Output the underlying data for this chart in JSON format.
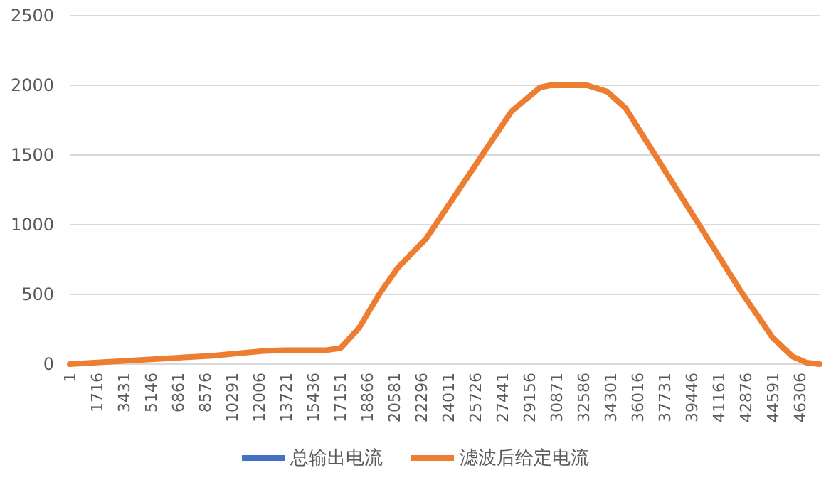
{
  "chart_data": {
    "type": "line",
    "x": [
      1,
      4524,
      9046,
      12393,
      13569,
      16282,
      17187,
      18363,
      19629,
      20805,
      22614,
      28041,
      29850,
      30483,
      32835,
      34101,
      35277,
      38895,
      42513,
      44594,
      45860,
      46765,
      47579
    ],
    "series": [
      {
        "name": "总输出电流",
        "color": "#4472c4",
        "values": [
          null,
          null,
          null,
          null,
          null,
          null,
          null,
          null,
          null,
          null,
          null,
          null,
          null,
          null,
          null,
          null,
          null,
          null,
          null,
          null,
          null,
          null,
          null
        ]
      },
      {
        "name": "滤波后给定电流",
        "color": "#ed7d31",
        "values": [
          0,
          30,
          60,
          95,
          100,
          100,
          115,
          260,
          500,
          690,
          900,
          1815,
          1985,
          2000,
          2000,
          1955,
          1835,
          1185,
          535,
          190,
          55,
          10,
          0
        ]
      }
    ],
    "xlim": [
      1,
      47579
    ],
    "xticks": [
      1,
      1716,
      3431,
      5146,
      6861,
      8576,
      10291,
      12006,
      13721,
      15436,
      17151,
      18866,
      20581,
      22296,
      24011,
      25726,
      27441,
      29156,
      30871,
      32586,
      34301,
      36016,
      37731,
      39446,
      41161,
      42876,
      44591,
      46306
    ],
    "ylim": [
      0,
      2500
    ],
    "yticks": [
      0,
      500,
      1000,
      1500,
      2000,
      2500
    ],
    "grid": "y",
    "legend": "bottom",
    "line_style": "solid",
    "marker": "none"
  }
}
